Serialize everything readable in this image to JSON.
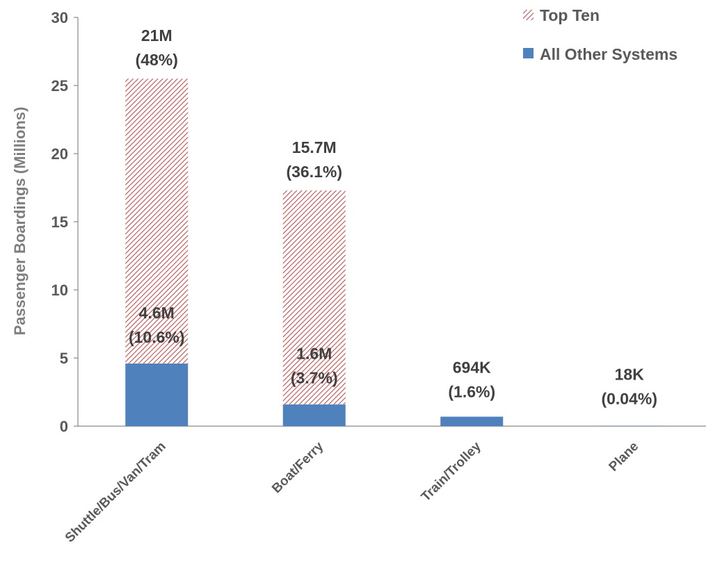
{
  "chart_data": {
    "type": "bar",
    "stacked": true,
    "title": "",
    "xlabel": "",
    "ylabel": "Passenger Boardings (Millions)",
    "ylim": [
      0,
      30
    ],
    "yticks": [
      0,
      5,
      10,
      15,
      20,
      25,
      30
    ],
    "categories": [
      "Shuttle/Bus/Van/Tram",
      "Boat/Ferry",
      "Train/Trolley",
      "Plane"
    ],
    "series": [
      {
        "name": "All Other Systems",
        "values": [
          4.6,
          1.6,
          0.694,
          0.018
        ],
        "color": "#4f81bd"
      },
      {
        "name": "Top Ten",
        "values": [
          20.9,
          15.7,
          0,
          0
        ],
        "color": "#c0504d",
        "pattern": "diagonal-hatch"
      }
    ],
    "labels": {
      "top_ten": [
        {
          "category": "Shuttle/Bus/Van/Tram",
          "value": "21M",
          "percent": "(48%)"
        },
        {
          "category": "Boat/Ferry",
          "value": "15.7M",
          "percent": "(36.1%)"
        }
      ],
      "all_other": [
        {
          "category": "Shuttle/Bus/Van/Tram",
          "value": "4.6M",
          "percent": "(10.6%)"
        },
        {
          "category": "Boat/Ferry",
          "value": "1.6M",
          "percent": "(3.7%)"
        },
        {
          "category": "Train/Trolley",
          "value": "694K",
          "percent": "(1.6%)"
        },
        {
          "category": "Plane",
          "value": "18K",
          "percent": "(0.04%)"
        }
      ]
    },
    "legend": {
      "position": "top-right",
      "entries": [
        "Top Ten",
        "All Other Systems"
      ]
    },
    "grid": false
  }
}
